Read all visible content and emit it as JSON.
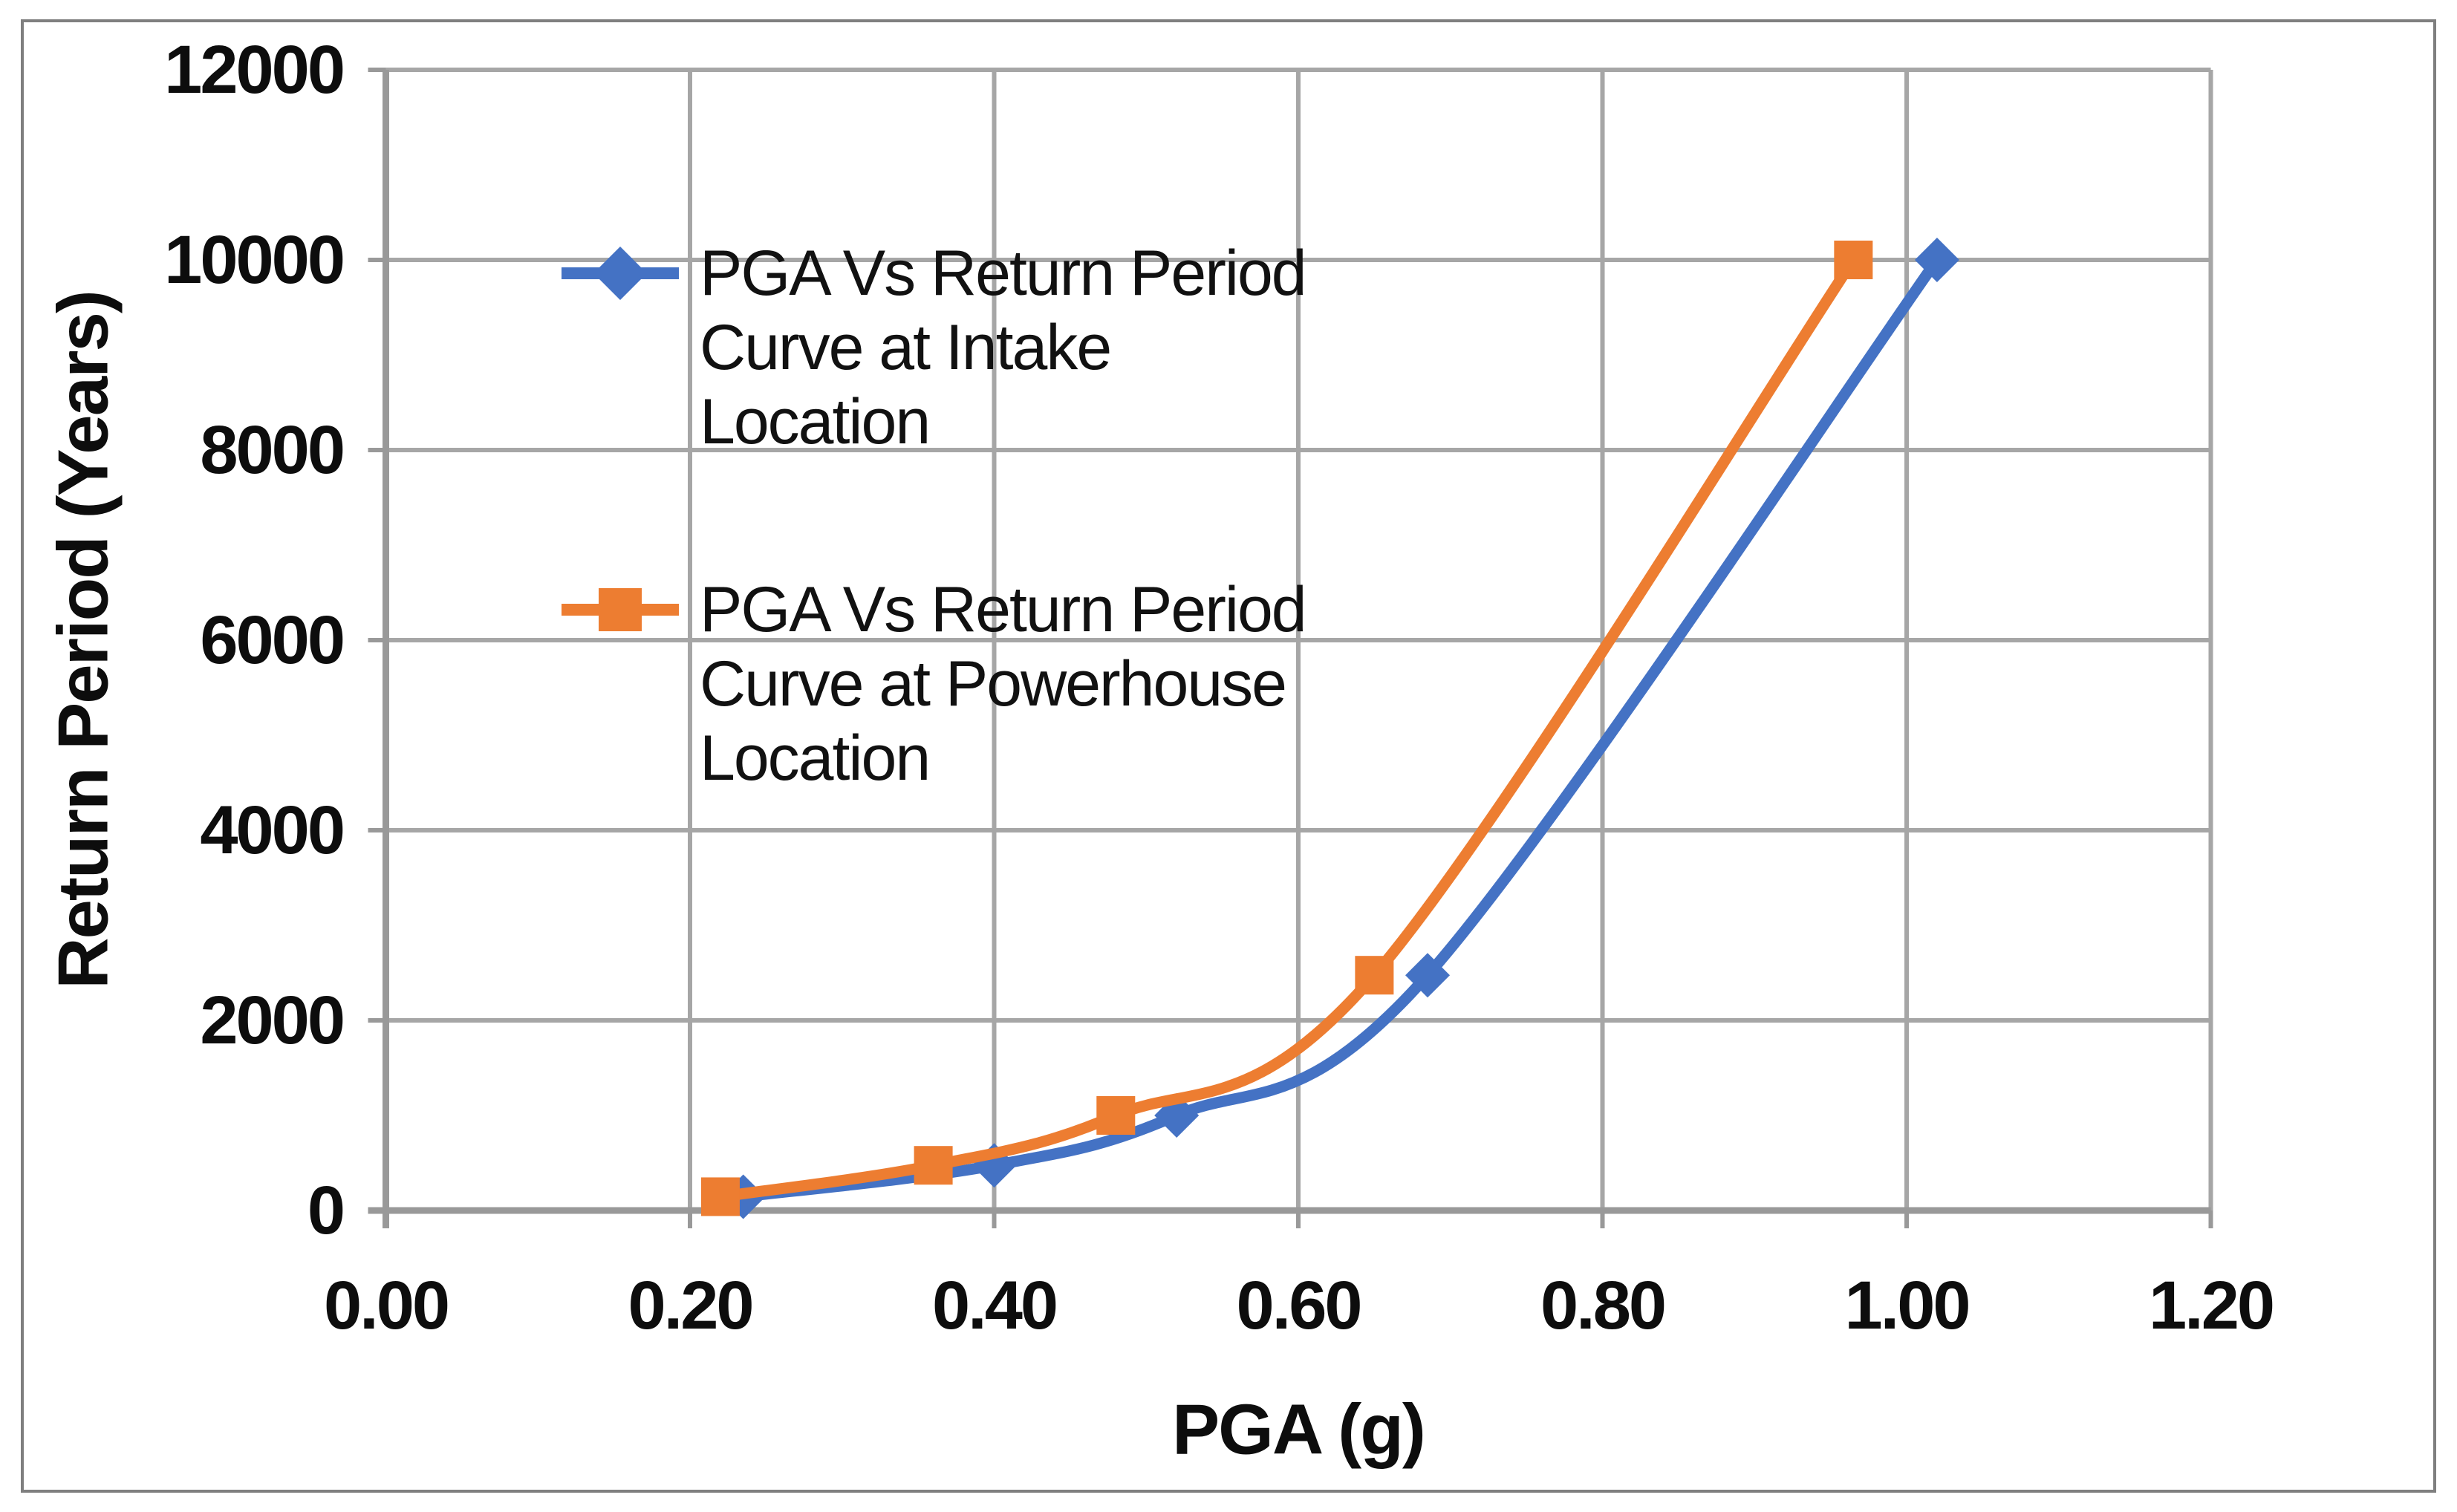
{
  "chart_data": {
    "type": "line",
    "title": "",
    "xlabel": "PGA (g)",
    "ylabel": "Return Period (Years)",
    "xlim": [
      0,
      1.2
    ],
    "ylim": [
      0,
      12000
    ],
    "x_ticks": [
      0,
      0.2,
      0.4,
      0.6,
      0.8,
      1.0,
      1.2
    ],
    "x_tick_labels": [
      "0.00",
      "0.20",
      "0.40",
      "0.60",
      "0.80",
      "1.00",
      "1.20"
    ],
    "y_ticks": [
      0,
      2000,
      4000,
      6000,
      8000,
      10000,
      12000
    ],
    "y_tick_labels": [
      "0",
      "2000",
      "4000",
      "6000",
      "8000",
      "10000",
      "12000"
    ],
    "grid": true,
    "legend_position": "inside-top-left",
    "series": [
      {
        "name": "PGA Vs Return Period Curve at Intake Location",
        "legend_lines": [
          "PGA Vs Return Period",
          "Curve at Intake",
          "Location"
        ],
        "color": "#4472C4",
        "marker": "diamond",
        "smooth": true,
        "points": [
          [
            0.235,
            145
          ],
          [
            0.4,
            475
          ],
          [
            0.52,
            1000
          ],
          [
            0.685,
            2475
          ],
          [
            1.02,
            10000
          ]
        ]
      },
      {
        "name": "PGA Vs Return Period Curve at Powerhouse Location",
        "legend_lines": [
          "PGA Vs Return Period",
          "Curve at Powerhouse",
          "Location"
        ],
        "color": "#ED7D31",
        "marker": "square",
        "smooth": true,
        "points": [
          [
            0.22,
            145
          ],
          [
            0.36,
            475
          ],
          [
            0.48,
            1000
          ],
          [
            0.65,
            2475
          ],
          [
            0.965,
            10000
          ]
        ]
      }
    ],
    "colors": {
      "gridline": "#A6A6A6",
      "axis_line": "#999999",
      "text": "#0d0d0d",
      "border": "#7F7F7F",
      "background": "#FFFFFF"
    }
  }
}
